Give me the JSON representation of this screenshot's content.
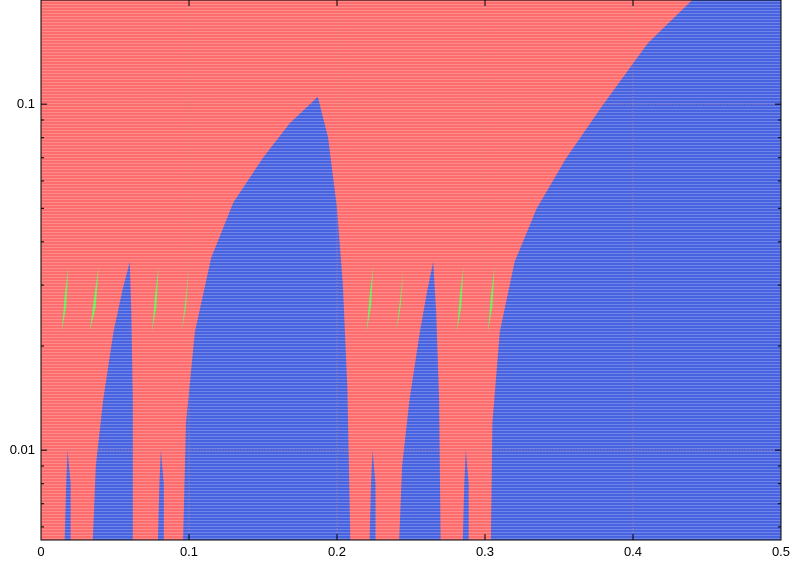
{
  "chart_data": {
    "type": "area",
    "title": "",
    "xlabel": "",
    "ylabel": "",
    "xlim": [
      0,
      0.5
    ],
    "ylim": [
      0.0055,
      0.2
    ],
    "yscale": "log",
    "grid": true,
    "x_ticks": [
      {
        "value": 0,
        "label": "0"
      },
      {
        "value": 0.1,
        "label": "0.1"
      },
      {
        "value": 0.2,
        "label": "0.2"
      },
      {
        "value": 0.3,
        "label": "0.3"
      },
      {
        "value": 0.4,
        "label": "0.4"
      },
      {
        "value": 0.5,
        "label": "0.5"
      }
    ],
    "y_ticks": [
      {
        "value": 0.1,
        "label": "0.1"
      },
      {
        "value": 0.01,
        "label": "0.01"
      }
    ],
    "colors": {
      "background_region": "#fd6d6d",
      "main_region": "#4863e0",
      "small_region": "#66ee55",
      "stripe": "#ffffff",
      "grid": "#c08080"
    },
    "regions": [
      {
        "kind": "main",
        "points": [
          [
            0.5,
            0.0055
          ],
          [
            0.5,
            0.2
          ],
          [
            0.44,
            0.2
          ],
          [
            0.41,
            0.15
          ],
          [
            0.38,
            0.1
          ],
          [
            0.355,
            0.07
          ],
          [
            0.335,
            0.05
          ],
          [
            0.32,
            0.035
          ],
          [
            0.31,
            0.022
          ],
          [
            0.305,
            0.012
          ],
          [
            0.304,
            0.0055
          ]
        ]
      },
      {
        "kind": "main",
        "points": [
          [
            0.096,
            0.0055
          ],
          [
            0.098,
            0.012
          ],
          [
            0.104,
            0.022
          ],
          [
            0.115,
            0.036
          ],
          [
            0.13,
            0.052
          ],
          [
            0.15,
            0.07
          ],
          [
            0.168,
            0.088
          ],
          [
            0.187,
            0.105
          ],
          [
            0.194,
            0.08
          ],
          [
            0.2,
            0.05
          ],
          [
            0.204,
            0.03
          ],
          [
            0.207,
            0.015
          ],
          [
            0.209,
            0.0055
          ]
        ]
      },
      {
        "kind": "main",
        "points": [
          [
            0.035,
            0.0055
          ],
          [
            0.037,
            0.009
          ],
          [
            0.042,
            0.014
          ],
          [
            0.049,
            0.022
          ],
          [
            0.055,
            0.029
          ],
          [
            0.06,
            0.035
          ],
          [
            0.061,
            0.025
          ],
          [
            0.062,
            0.014
          ],
          [
            0.062,
            0.0055
          ]
        ]
      },
      {
        "kind": "main",
        "points": [
          [
            0.242,
            0.0055
          ],
          [
            0.244,
            0.009
          ],
          [
            0.249,
            0.014
          ],
          [
            0.256,
            0.022
          ],
          [
            0.261,
            0.029
          ],
          [
            0.265,
            0.035
          ],
          [
            0.267,
            0.025
          ],
          [
            0.269,
            0.014
          ],
          [
            0.27,
            0.0055
          ]
        ]
      },
      {
        "kind": "main",
        "points": [
          [
            0.016,
            0.0055
          ],
          [
            0.017,
            0.008
          ],
          [
            0.018,
            0.01
          ],
          [
            0.02,
            0.008
          ],
          [
            0.02,
            0.0055
          ]
        ]
      },
      {
        "kind": "main",
        "points": [
          [
            0.079,
            0.0055
          ],
          [
            0.08,
            0.008
          ],
          [
            0.081,
            0.01
          ],
          [
            0.083,
            0.008
          ],
          [
            0.083,
            0.0055
          ]
        ]
      },
      {
        "kind": "main",
        "points": [
          [
            0.222,
            0.0055
          ],
          [
            0.223,
            0.008
          ],
          [
            0.224,
            0.01
          ],
          [
            0.226,
            0.008
          ],
          [
            0.226,
            0.0055
          ]
        ]
      },
      {
        "kind": "main",
        "points": [
          [
            0.285,
            0.0055
          ],
          [
            0.286,
            0.008
          ],
          [
            0.287,
            0.01
          ],
          [
            0.289,
            0.008
          ],
          [
            0.289,
            0.0055
          ]
        ]
      },
      {
        "kind": "small",
        "points": [
          [
            0.014,
            0.022
          ],
          [
            0.016,
            0.028
          ],
          [
            0.0185,
            0.034
          ],
          [
            0.017,
            0.026
          ]
        ]
      },
      {
        "kind": "small",
        "points": [
          [
            0.033,
            0.022
          ],
          [
            0.036,
            0.028
          ],
          [
            0.039,
            0.034
          ],
          [
            0.037,
            0.026
          ]
        ]
      },
      {
        "kind": "small",
        "points": [
          [
            0.075,
            0.022
          ],
          [
            0.077,
            0.028
          ],
          [
            0.0795,
            0.034
          ],
          [
            0.078,
            0.026
          ]
        ]
      },
      {
        "kind": "small",
        "points": [
          [
            0.095,
            0.022
          ],
          [
            0.098,
            0.028
          ],
          [
            0.1,
            0.034
          ],
          [
            0.098,
            0.026
          ]
        ]
      },
      {
        "kind": "small",
        "points": [
          [
            0.22,
            0.022
          ],
          [
            0.222,
            0.028
          ],
          [
            0.2245,
            0.034
          ],
          [
            0.223,
            0.026
          ]
        ]
      },
      {
        "kind": "small",
        "points": [
          [
            0.24,
            0.022
          ],
          [
            0.243,
            0.028
          ],
          [
            0.245,
            0.034
          ],
          [
            0.243,
            0.026
          ]
        ]
      },
      {
        "kind": "small",
        "points": [
          [
            0.281,
            0.022
          ],
          [
            0.283,
            0.028
          ],
          [
            0.2855,
            0.034
          ],
          [
            0.284,
            0.026
          ]
        ]
      },
      {
        "kind": "small",
        "points": [
          [
            0.302,
            0.022
          ],
          [
            0.304,
            0.028
          ],
          [
            0.3065,
            0.034
          ],
          [
            0.305,
            0.026
          ]
        ]
      }
    ]
  }
}
